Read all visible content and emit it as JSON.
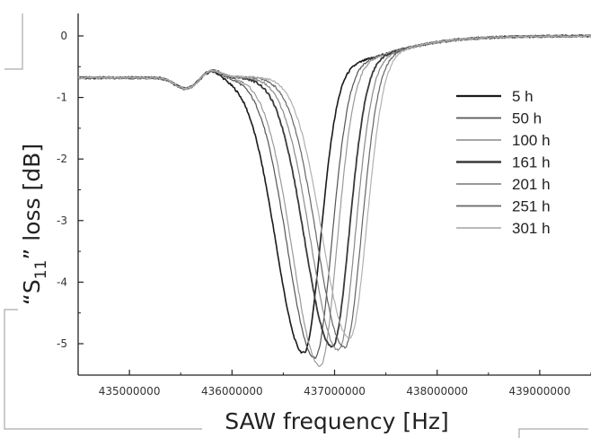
{
  "chart_data": {
    "type": "line",
    "title": "",
    "xlabel": "SAW frequency [Hz]",
    "ylabel_parts": {
      "open": "“S",
      "sub": "11",
      "close": "” loss [dB]"
    },
    "xlim": [
      434500000,
      439500000
    ],
    "ylim": [
      -5.45,
      0.35
    ],
    "x_ticks": [
      435000000,
      436000000,
      437000000,
      438000000,
      439000000
    ],
    "x_tick_labels": [
      "435000000",
      "436000000",
      "437000000",
      "438000000",
      "439000000"
    ],
    "y_ticks": [
      0,
      -1,
      -2,
      -3,
      -4,
      -5
    ],
    "y_tick_labels": [
      "0",
      "-1",
      "-2",
      "-3",
      "-4",
      "-5"
    ],
    "grid": false,
    "legend_position": "right",
    "series": [
      {
        "name": "5 h",
        "color": "#1a1a1a",
        "width": 1.6,
        "shift": -250000,
        "min": -4.95
      },
      {
        "name": "50 h",
        "color": "#555555",
        "width": 1.2,
        "shift": -140000,
        "min": -5.05
      },
      {
        "name": "100 h",
        "color": "#9a9a9a",
        "width": 1.2,
        "shift": -90000,
        "min": -5.2
      },
      {
        "name": "161 h",
        "color": "#3a3a3a",
        "width": 1.8,
        "shift": 30000,
        "min": -4.92
      },
      {
        "name": "201 h",
        "color": "#8a8a8a",
        "width": 1.2,
        "shift": 90000,
        "min": -5.0
      },
      {
        "name": "251 h",
        "color": "#666666",
        "width": 1.2,
        "shift": 150000,
        "min": -4.98
      },
      {
        "name": "301 h",
        "color": "#b0b0b0",
        "width": 1.2,
        "shift": 200000,
        "min": -4.85
      }
    ]
  }
}
